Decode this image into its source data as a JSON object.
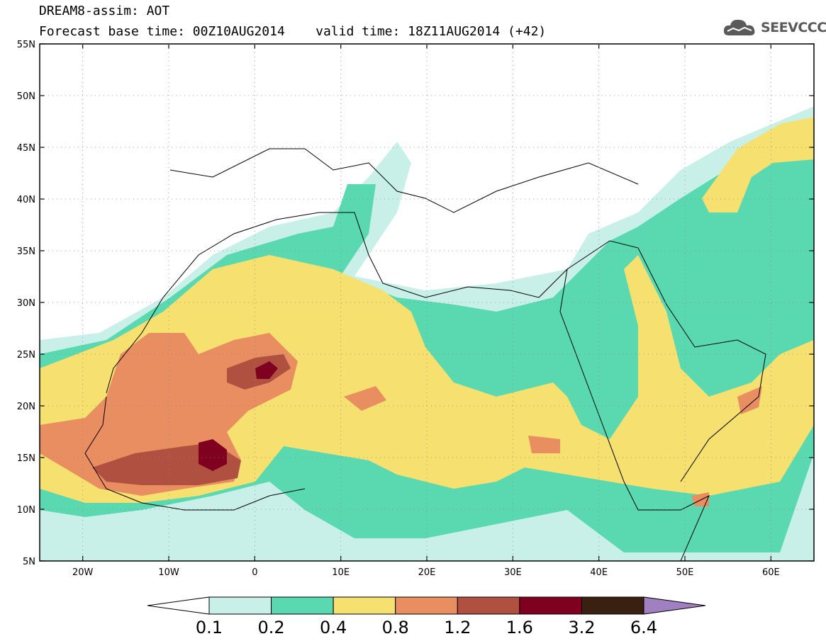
{
  "header": {
    "title_line1": "DREAM8-assim: AOT",
    "title_line2": "Forecast base time: 00Z10AUG2014    valid time: 18Z11AUG2014 (+42)",
    "logo_text": "SEEVCCC"
  },
  "axes": {
    "lat_labels": [
      "55N",
      "50N",
      "45N",
      "40N",
      "35N",
      "30N",
      "25N",
      "20N",
      "15N",
      "10N",
      "5N"
    ],
    "lon_labels": [
      "20W",
      "10W",
      "0",
      "10E",
      "20E",
      "30E",
      "40E",
      "50E",
      "60E"
    ]
  },
  "colorbar": {
    "labels": [
      "0.1",
      "0.2",
      "0.4",
      "0.8",
      "1.2",
      "1.6",
      "3.2",
      "6.4"
    ],
    "colors": [
      "#ffffff",
      "#c8f0e8",
      "#5ad8b0",
      "#f5e070",
      "#e88e60",
      "#b05040",
      "#800020",
      "#3a2010",
      "#a080c0"
    ]
  },
  "map_data": {
    "variable": "AOT",
    "lat_range": [
      5,
      55
    ],
    "lon_range": [
      -25,
      65
    ]
  }
}
